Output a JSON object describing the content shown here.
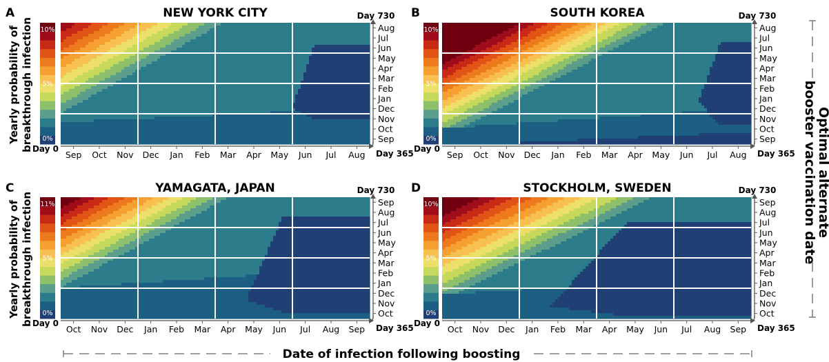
{
  "figure": {
    "y_title_line1": "Yearly probability of",
    "y_title_line2": "breakthrough infection",
    "x_title": "Date of infection following boosting",
    "right_title_line1": "Optimal alternate",
    "right_title_line2": "booster vaccination date",
    "day0": "Day 0",
    "day365": "Day 365",
    "day730": "Day 730"
  },
  "colors": {
    "scale": [
      "#1f3f75",
      "#1d5f82",
      "#2c7c8b",
      "#5b9e8b",
      "#8ebf6b",
      "#c6d95c",
      "#ece06a",
      "#f7c050",
      "#f6a032",
      "#ee7a1e",
      "#e05416",
      "#c82a16",
      "#9f0c1a",
      "#700010"
    ],
    "line": "#ffffff"
  },
  "chart_data": [
    {
      "type": "heatmap",
      "letter": "A",
      "title": "NEW YORK CITY",
      "scale_labels": {
        "top": "10%",
        "mid": "5%",
        "bottom": "0%"
      },
      "x_ticks": [
        "Sep",
        "Oct",
        "Nov",
        "Dec",
        "Jan",
        "Feb",
        "Mar",
        "Apr",
        "May",
        "Jun",
        "Jul",
        "Aug"
      ],
      "y_ticks_bottom_to_top": [
        "Sep",
        "Oct",
        "Nov",
        "Dec",
        "Jan",
        "Feb",
        "Mar",
        "Apr",
        "May",
        "Jun",
        "Jul",
        "Aug"
      ],
      "x_range_days": [
        0,
        365
      ],
      "y_range_days": [
        365,
        730
      ],
      "gridlines_x_month_index": [
        3,
        6,
        9
      ],
      "gridlines_y_month_index": [
        3,
        6,
        9
      ],
      "max_probability_percent": 10,
      "surface": {
        "s": 0.85,
        "c": 1.3,
        "y0": 0.18,
        "shift": 0.0,
        "base": 0.12
      },
      "dark_region": {
        "x0": 0.75,
        "xm": 0.82,
        "y": 0.3,
        "end_top": 0.82,
        "end_bottom": 0.2
      }
    },
    {
      "type": "heatmap",
      "letter": "B",
      "title": "SOUTH KOREA",
      "scale_labels": {
        "top": "10%",
        "mid": "5%",
        "bottom": "0%"
      },
      "x_ticks": [
        "Sep",
        "Oct",
        "Nov",
        "Dec",
        "Jan",
        "Feb",
        "Mar",
        "Apr",
        "May",
        "Jun",
        "Jul",
        "Aug"
      ],
      "y_ticks_bottom_to_top": [
        "Sep",
        "Oct",
        "Nov",
        "Dec",
        "Jan",
        "Feb",
        "Mar",
        "Apr",
        "May",
        "Jun",
        "Jul",
        "Aug"
      ],
      "x_range_days": [
        0,
        365
      ],
      "y_range_days": [
        365,
        730
      ],
      "gridlines_x_month_index": [
        3,
        6,
        9
      ],
      "gridlines_y_month_index": [
        3,
        6,
        9
      ],
      "max_probability_percent": 10,
      "surface": {
        "s": 0.7,
        "c": 1.15,
        "y0": 0.13,
        "shift": 0.14,
        "base": 0.17
      },
      "dark_region": {
        "x0": 0.83,
        "xm": 0.9,
        "y": 0.35,
        "end_top": 0.83,
        "end_bottom": 0.15
      },
      "bottom_dark_band": {
        "x0": 0.15,
        "y_top_end": 0.1
      }
    },
    {
      "type": "heatmap",
      "letter": "C",
      "title": "YAMAGATA, JAPAN",
      "scale_labels": {
        "top": "11%",
        "mid": "5%",
        "bottom": "0%"
      },
      "x_ticks": [
        "Oct",
        "Nov",
        "Dec",
        "Jan",
        "Feb",
        "Mar",
        "Apr",
        "May",
        "Jun",
        "Jul",
        "Aug",
        "Sep"
      ],
      "y_ticks_bottom_to_top": [
        "Oct",
        "Nov",
        "Dec",
        "Jan",
        "Feb",
        "Mar",
        "Apr",
        "May",
        "Jun",
        "Jul",
        "Aug",
        "Sep"
      ],
      "x_range_days": [
        0,
        365
      ],
      "y_range_days": [
        365,
        730
      ],
      "gridlines_x_month_index": [
        3,
        6,
        9
      ],
      "gridlines_y_month_index": [
        3,
        6,
        9
      ],
      "max_probability_percent": 11,
      "surface": {
        "s": 0.75,
        "c": 1.2,
        "y0": 0.25,
        "shift": 0.06,
        "base": 0.17
      },
      "dark_region": {
        "x0": 0.6,
        "xm": 0.72,
        "y": 0.15,
        "end_top": 0.85,
        "end_bottom": 0.05
      }
    },
    {
      "type": "heatmap",
      "letter": "D",
      "title": "STOCKHOLM, SWEDEN",
      "scale_labels": {
        "top": "10%",
        "mid": "5%",
        "bottom": "0%"
      },
      "x_ticks": [
        "Oct",
        "Nov",
        "Dec",
        "Jan",
        "Feb",
        "Mar",
        "Apr",
        "May",
        "Jun",
        "Jul",
        "Aug",
        "Sep"
      ],
      "y_ticks_bottom_to_top": [
        "Oct",
        "Nov",
        "Dec",
        "Jan",
        "Feb",
        "Mar",
        "Apr",
        "May",
        "Jun",
        "Jul",
        "Aug",
        "Sep"
      ],
      "x_range_days": [
        0,
        365
      ],
      "y_range_days": [
        365,
        730
      ],
      "gridlines_x_month_index": [
        3,
        6,
        9
      ],
      "gridlines_y_month_index": [
        3,
        6,
        9
      ],
      "max_probability_percent": 10,
      "surface": {
        "s": 0.8,
        "c": 1.1,
        "y0": 0.2,
        "shift": 0.12,
        "base": 0.15
      },
      "dark_region": {
        "x0": 0.35,
        "xm": 0.6,
        "y": 0.1,
        "end_top": 0.8,
        "end_bottom": 0.02
      }
    }
  ]
}
